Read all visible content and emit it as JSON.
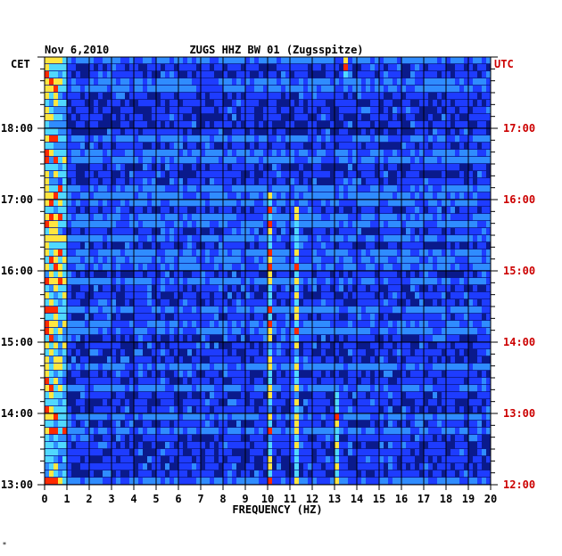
{
  "header": {
    "date": "Nov 6,2010",
    "station": "ZUGS HHZ BW 01 (Zugsspitze)"
  },
  "axes": {
    "left_tz": "CET",
    "right_tz": "UTC",
    "xlabel": "FREQUENCY (HZ)"
  },
  "colors": {
    "background": "#ffffff",
    "plot_base": "#0a1a8c",
    "grid": "#000000",
    "left_labels": "#000000",
    "right_labels": "#cc0000"
  },
  "chart_data": {
    "type": "heatmap",
    "title": "ZUGS HHZ BW 01 (Zugsspitze)",
    "date": "Nov 6,2010",
    "xlabel": "FREQUENCY (HZ)",
    "xlim": [
      0,
      20
    ],
    "x_ticks": [
      "0",
      "1",
      "2",
      "3",
      "4",
      "5",
      "6",
      "7",
      "8",
      "9",
      "10",
      "11",
      "12",
      "13",
      "14",
      "15",
      "16",
      "17",
      "18",
      "19",
      "20"
    ],
    "time_range_utc": [
      "12:00",
      "18:00"
    ],
    "time_range_cet": [
      "13:00",
      "19:00"
    ],
    "y_ticks_left_cet": [
      "13:00",
      "14:00",
      "15:00",
      "16:00",
      "17:00",
      "18:00"
    ],
    "y_ticks_right_utc": [
      "12:00",
      "13:00",
      "14:00",
      "15:00",
      "16:00",
      "17:00"
    ],
    "rows": 60,
    "colormap": [
      "#0a1a8c",
      "#1e3cff",
      "#2f8cff",
      "#50d8ff",
      "#ffe640",
      "#ff2a00"
    ],
    "features": [
      {
        "label": "broadband noise",
        "freq_hz": [
          0,
          1
        ],
        "intensity": "high"
      },
      {
        "label": "spectral line",
        "freq_hz": 10.1,
        "time_cet": [
          "13:00",
          "17:05"
        ]
      },
      {
        "label": "spectral line",
        "freq_hz": 11.3,
        "time_cet": [
          "13:00",
          "16:55"
        ]
      },
      {
        "label": "spectral line",
        "freq_hz": 13.1,
        "time_cet": [
          "13:00",
          "14:15"
        ]
      },
      {
        "label": "spectral line",
        "freq_hz": 13.5,
        "time_cet": [
          "18:45",
          "19:00"
        ]
      }
    ]
  }
}
